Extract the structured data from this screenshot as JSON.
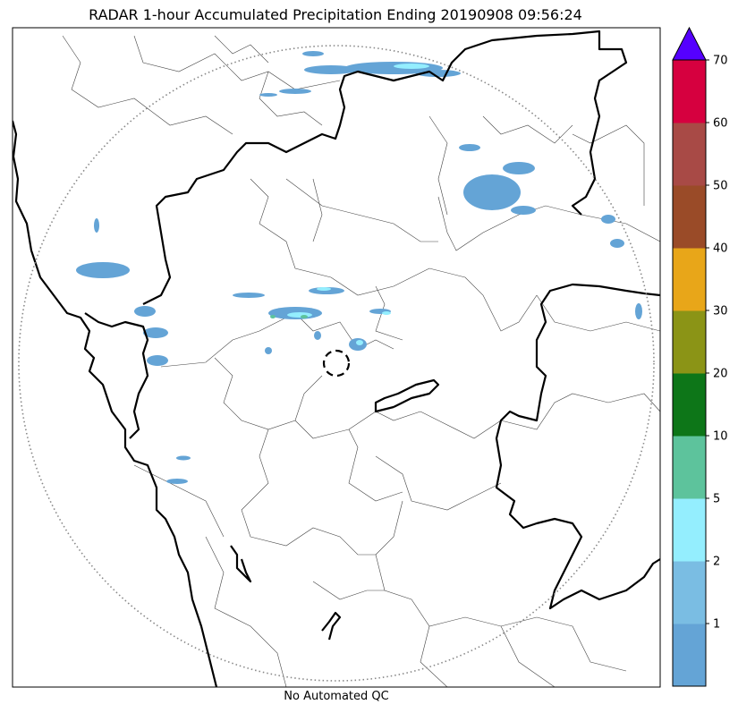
{
  "title": "RADAR 1-hour Accumulated Precipitation Ending 20190908 09:56:24",
  "caption": "No Automated QC",
  "colors": {
    "range_ring": "#888888",
    "boundary_state": "#000000",
    "boundary_district": "#333333",
    "overflow_arrow": "#5500ff"
  },
  "colorbar": {
    "levels": [
      "",
      "1",
      "2",
      "5",
      "10",
      "20",
      "30",
      "40",
      "50",
      "60",
      "70"
    ],
    "colors": [
      "#64a4d6",
      "#7abde3",
      "#94eefe",
      "#5dc39c",
      "#0d7618",
      "#8b9416",
      "#e8a619",
      "#9a4b28",
      "#a84a46",
      "#d6003f"
    ]
  }
}
